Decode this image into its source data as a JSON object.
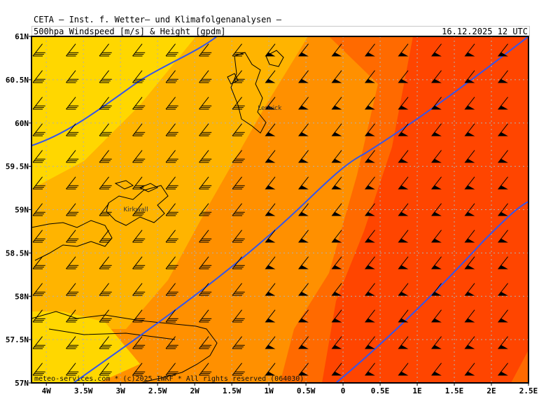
{
  "header": {
    "line1": "CETA – Inst. f. Wetter– und Klimafolgenanalysen –",
    "line2": "500hpa Windspeed [m/s] & Height [gpdm]",
    "datetime": "16.12.2025 12 UTC"
  },
  "footer": {
    "credit": "meteo-services.com * (c)2025 IWKF * All rights reserved (064030)"
  },
  "map": {
    "x_labels": [
      "4W",
      "3.5W",
      "3W",
      "2.5W",
      "2W",
      "1.5W",
      "1W",
      "0.5W",
      "0",
      "0.5E",
      "1E",
      "1.5E",
      "2E",
      "2.5E"
    ],
    "y_labels": [
      "61N",
      "60.5N",
      "60N",
      "59.5N",
      "59N",
      "58.5N",
      "58N",
      "57.5N",
      "57N"
    ],
    "cities": [
      {
        "name": "Lerwick",
        "lon": -1.15,
        "lat": 60.15
      },
      {
        "name": "Kirkwall",
        "lon": -2.96,
        "lat": 58.98
      }
    ],
    "colors": {
      "band1": "#ffd700",
      "band2": "#ffb400",
      "band3": "#ff9000",
      "band4": "#ff6a00",
      "band5": "#ff4500",
      "contour": "#3355ee",
      "grid": "#b0b0b0"
    }
  }
}
